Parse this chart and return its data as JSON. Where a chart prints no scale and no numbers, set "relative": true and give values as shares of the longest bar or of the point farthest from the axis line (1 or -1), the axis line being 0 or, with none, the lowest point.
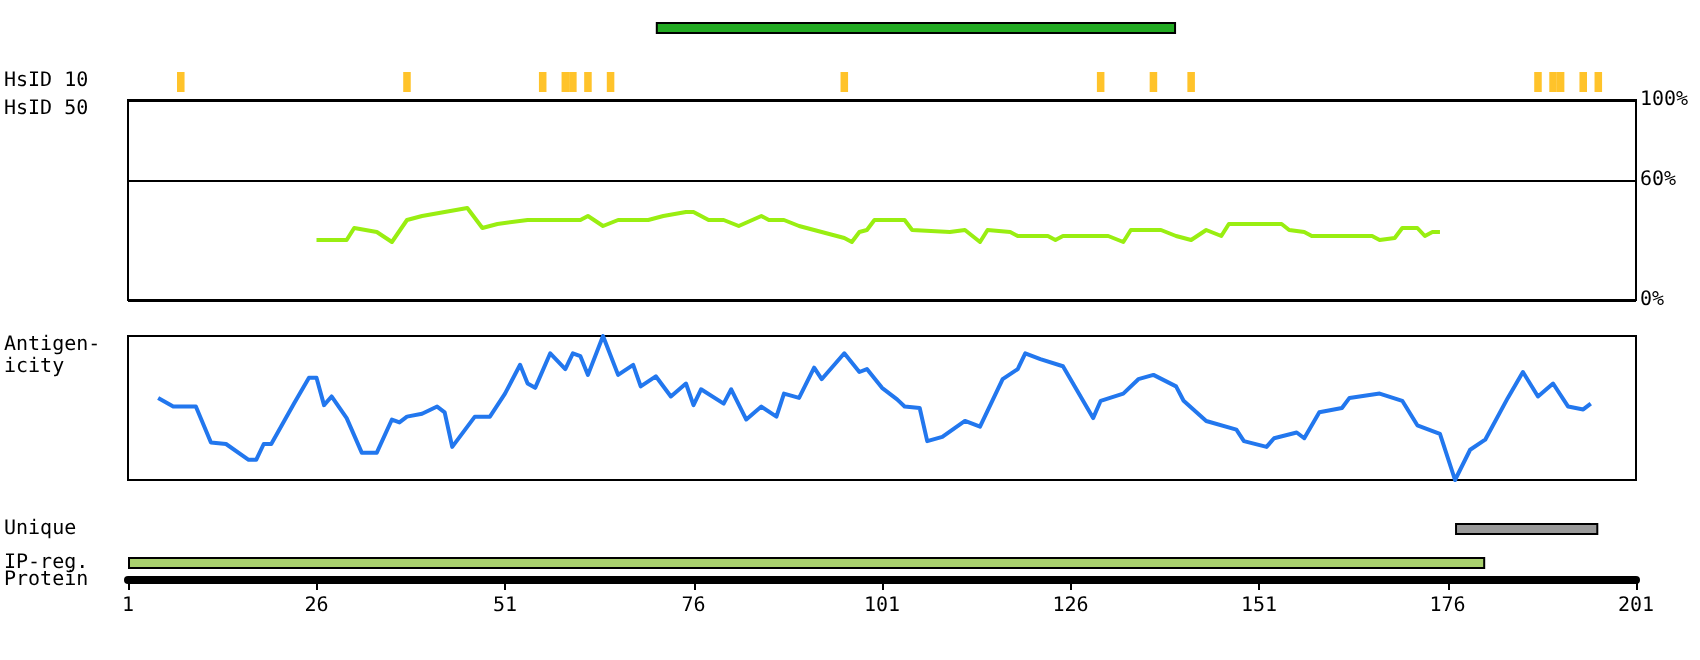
{
  "chart_data": [
    {
      "type": "bar",
      "orientation": "horizontal",
      "categories": [
        null
      ],
      "base": [
        71
      ],
      "values": [
        69
      ],
      "colors": [
        "#22aa22"
      ],
      "xlim": [
        1,
        201
      ],
      "tick_labels": false
    },
    {
      "type": "bar",
      "relative": true,
      "ylabel": "HsID 10",
      "color": "#ffc32a",
      "x": [
        8,
        38,
        56,
        59,
        60,
        62,
        65,
        96,
        130,
        137,
        142,
        188,
        190,
        191,
        194,
        196
      ],
      "values": [
        1,
        1,
        1,
        1,
        1,
        1,
        1,
        1,
        1,
        1,
        1,
        1,
        1,
        1,
        1,
        1
      ],
      "xlim": [
        1,
        201
      ],
      "tick_labels": false
    },
    {
      "type": "line",
      "ylabel": "HsID 50",
      "marker": "none",
      "line_style": "solid",
      "grid": "y",
      "xlim": [
        1,
        201
      ],
      "ylim": [
        0,
        100
      ],
      "yticks": [
        {
          "value": 0,
          "label": "0%"
        },
        {
          "value": 60,
          "label": "60%"
        },
        {
          "value": 100,
          "label": "100%"
        }
      ],
      "tick_labels": "y",
      "x": [
        26,
        30,
        31,
        34,
        36,
        38,
        40,
        43,
        46,
        48,
        50,
        54,
        61,
        62,
        64,
        66,
        70,
        72,
        75,
        76,
        78,
        80,
        82,
        85,
        86,
        88,
        90,
        92,
        95,
        96,
        97,
        98,
        99,
        100,
        104,
        105,
        110,
        112,
        114,
        115,
        118,
        119,
        123,
        124,
        125,
        131,
        133,
        134,
        138,
        140,
        142,
        144,
        146,
        147,
        154,
        155,
        157,
        158,
        166,
        167,
        169,
        170,
        172,
        173,
        174,
        175
      ],
      "series": [
        {
          "color": "#99ee11",
          "values": [
            30,
            30,
            36,
            34,
            29,
            40,
            42,
            44,
            46,
            36,
            38,
            40,
            40,
            42,
            37,
            40,
            40,
            42,
            44,
            44,
            40,
            40,
            37,
            42,
            40,
            40,
            37,
            35,
            32,
            31,
            29,
            34,
            35,
            40,
            40,
            35,
            34,
            35,
            29,
            35,
            34,
            32,
            32,
            30,
            32,
            32,
            29,
            35,
            35,
            32,
            30,
            35,
            32,
            38,
            38,
            35,
            34,
            32,
            32,
            30,
            31,
            36,
            36,
            32,
            34,
            34
          ]
        }
      ]
    },
    {
      "type": "line",
      "relative": true,
      "ylabel": "Antigen-\nicity",
      "marker": "none",
      "xlim": [
        1,
        201
      ],
      "tick_labels": false,
      "x": [
        5,
        6,
        7,
        10,
        12,
        14,
        17,
        18,
        19,
        20,
        23,
        25,
        26,
        27,
        28,
        30,
        32,
        34,
        36,
        37,
        38,
        40,
        42,
        43,
        44,
        47,
        49,
        51,
        53,
        54,
        55,
        57,
        59,
        60,
        61,
        62,
        64,
        66,
        68,
        69,
        71,
        73,
        75,
        76,
        77,
        80,
        81,
        83,
        85,
        87,
        88,
        90,
        92,
        93,
        96,
        98,
        99,
        101,
        103,
        104,
        106,
        107,
        109,
        112,
        114,
        117,
        119,
        120,
        122,
        125,
        129,
        130,
        133,
        135,
        137,
        140,
        141,
        144,
        148,
        149,
        152,
        153,
        156,
        157,
        159,
        162,
        163,
        167,
        170,
        172,
        175,
        177,
        179,
        181,
        184,
        186,
        188,
        190,
        192,
        194,
        195
      ],
      "series": [
        {
          "color": "#2277ee",
          "values": [
            0.57,
            0.54,
            0.51,
            0.51,
            0.26,
            0.25,
            0.14,
            0.14,
            0.25,
            0.25,
            0.53,
            0.71,
            0.71,
            0.52,
            0.58,
            0.43,
            0.19,
            0.19,
            0.42,
            0.4,
            0.44,
            0.46,
            0.51,
            0.47,
            0.23,
            0.44,
            0.44,
            0.6,
            0.8,
            0.67,
            0.64,
            0.88,
            0.77,
            0.88,
            0.86,
            0.73,
            1,
            0.73,
            0.8,
            0.65,
            0.72,
            0.58,
            0.67,
            0.52,
            0.63,
            0.53,
            0.63,
            0.42,
            0.51,
            0.44,
            0.6,
            0.57,
            0.78,
            0.7,
            0.88,
            0.75,
            0.77,
            0.64,
            0.56,
            0.51,
            0.5,
            0.27,
            0.3,
            0.41,
            0.37,
            0.7,
            0.77,
            0.88,
            0.84,
            0.79,
            0.43,
            0.55,
            0.6,
            0.7,
            0.73,
            0.65,
            0.55,
            0.41,
            0.35,
            0.27,
            0.23,
            0.29,
            0.33,
            0.29,
            0.47,
            0.5,
            0.57,
            0.6,
            0.55,
            0.38,
            0.32,
            0,
            0.21,
            0.28,
            0.57,
            0.75,
            0.58,
            0.67,
            0.51,
            0.49,
            0.53
          ]
        }
      ]
    },
    {
      "type": "bar",
      "orientation": "horizontal",
      "categories": [
        "Unique",
        "IP-reg."
      ],
      "base": [
        177,
        1
      ],
      "values": [
        19,
        180
      ],
      "colors": [
        "#999999",
        "#aad26e"
      ],
      "xlabel": "Protein",
      "xlim": [
        1,
        201
      ],
      "xticks": [
        1,
        26,
        51,
        76,
        101,
        126,
        151,
        176,
        201
      ]
    }
  ]
}
